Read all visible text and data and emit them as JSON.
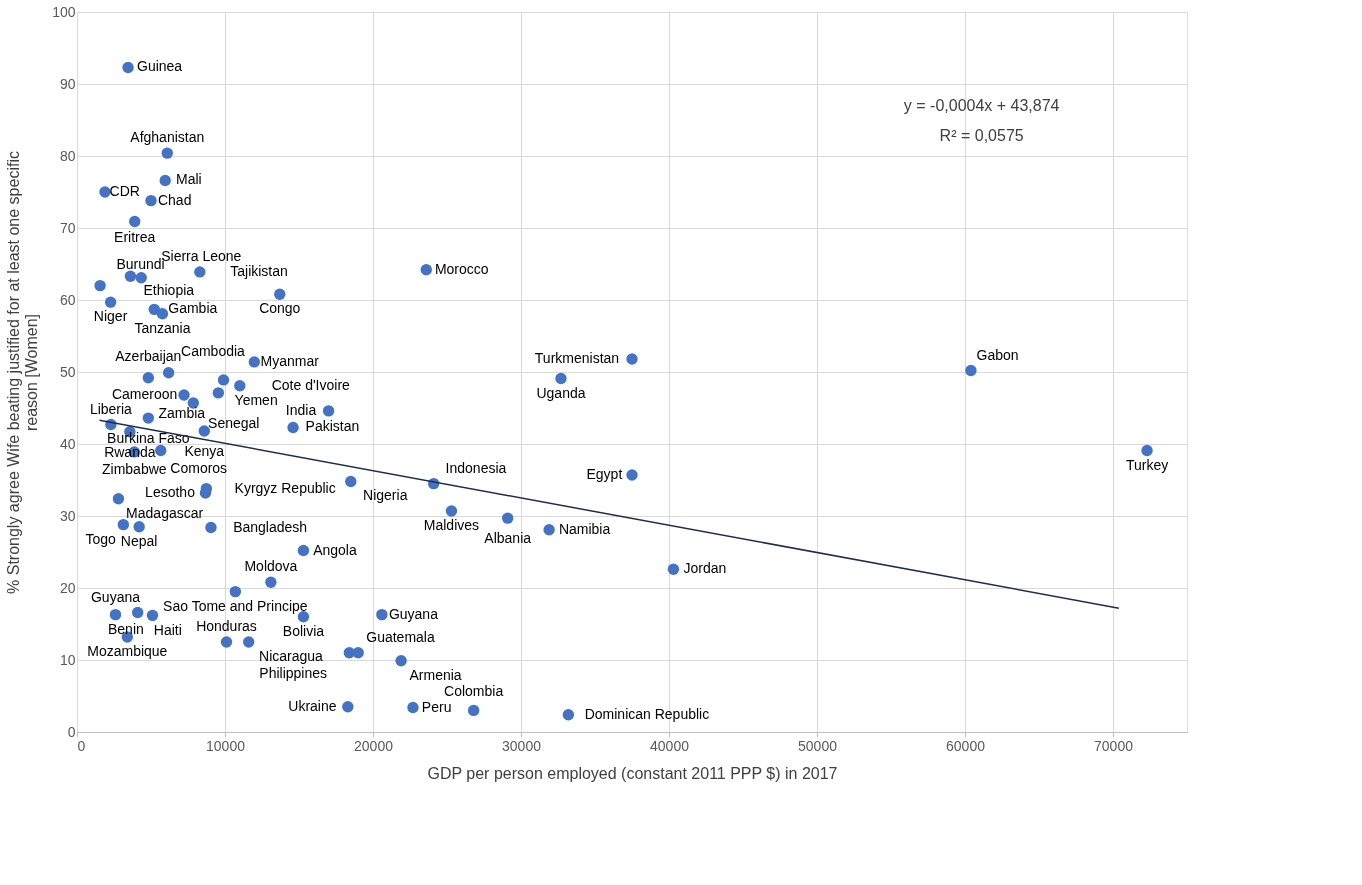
{
  "chart_data": {
    "type": "scatter",
    "xlabel": "GDP per person employed (constant 2011 PPP $) in 2017",
    "ylabel": "% Strongly agree Wife beating justified for at least one specific reason [Women]",
    "xlim": [
      0,
      75000
    ],
    "xticks": [
      0,
      10000,
      20000,
      30000,
      40000,
      50000,
      60000,
      70000
    ],
    "ylim": [
      0,
      100
    ],
    "yticks": [
      0,
      10,
      20,
      30,
      40,
      50,
      60,
      70,
      80,
      90,
      100
    ],
    "grid": true,
    "annotations": [
      "y = -0,0004x + 43,874",
      "R² = 0,0575"
    ],
    "series": [
      {
        "color": "#4472c4",
        "marker": "circle",
        "x": [
          3450,
          6100,
          5960,
          1890,
          5000,
          3900,
          1560,
          3610,
          4340,
          8300,
          13700,
          2270,
          5220,
          5770,
          23600,
          11980,
          9900,
          11000,
          7230,
          4820,
          6190,
          9550,
          7860,
          4820,
          8600,
          14600,
          17000,
          2290,
          3570,
          3870,
          5660,
          37500,
          32700,
          60400,
          72300,
          37500,
          8740,
          8680,
          18500,
          24100,
          2800,
          25300,
          29100,
          31900,
          3130,
          4200,
          9050,
          15300,
          40300,
          13100,
          10700,
          2600,
          4100,
          5100,
          15300,
          20600,
          3400,
          10100,
          11600,
          18400,
          19000,
          21900,
          18300,
          22700,
          26800,
          33200
        ],
        "values": [
          92.3,
          80.4,
          76.6,
          75.0,
          73.8,
          70.9,
          62.0,
          63.3,
          63.1,
          63.9,
          60.8,
          59.7,
          58.7,
          58.1,
          64.2,
          51.4,
          48.9,
          48.1,
          46.8,
          49.2,
          49.9,
          47.1,
          45.7,
          43.6,
          41.8,
          42.3,
          44.6,
          42.7,
          41.7,
          38.9,
          39.1,
          51.8,
          49.1,
          50.2,
          39.1,
          35.7,
          33.8,
          33.2,
          34.8,
          34.5,
          32.4,
          30.7,
          29.7,
          28.1,
          28.8,
          28.5,
          28.4,
          25.2,
          22.6,
          20.8,
          19.5,
          16.3,
          16.6,
          16.2,
          16.0,
          16.3,
          13.2,
          12.5,
          12.5,
          11.0,
          11.0,
          9.9,
          3.5,
          3.4,
          3.0,
          2.4
        ],
        "value_labels": [
          "Guinea",
          "Afghanistan",
          "Mali",
          "CDR",
          "Chad",
          "Eritrea",
          "Burundi",
          "Ethiopia",
          "Sierra Leone",
          "Tajikistan",
          "Congo",
          "Niger",
          "Gambia",
          "Tanzania",
          "Morocco",
          "Myanmar",
          "Yemen",
          "Cote d'Ivoire",
          "Cameroon",
          "Azerbaijan",
          "Cambodia",
          "Zambia",
          "Senegal",
          "Burkina Faso",
          "Kenya",
          "Pakistan",
          "India",
          "Liberia",
          "Rwanda",
          "Zimbabwe",
          "Comoros",
          "Turkmenistan",
          "Uganda",
          "Gabon",
          "Turkey",
          "Egypt",
          "Kyrgyz Republic",
          "Lesotho",
          "Nigeria",
          "Indonesia",
          "Madagascar",
          "Maldives",
          "Albania",
          "Namibia",
          "Togo",
          "Nepal",
          "Bangladesh",
          "Angola",
          "Jordan",
          "Moldova",
          "Sao Tome and Principe",
          "Guyana",
          "Haiti",
          "Benin",
          "Bolivia",
          "Guyana",
          "Mozambique",
          "Honduras",
          "Nicaragua",
          "Philippines",
          "Guatemala",
          "Armenia",
          "Ukraine",
          "Peru",
          "Colombia",
          "Dominican Republic"
        ]
      },
      {
        "type": "line",
        "color": "#1f2d4d",
        "line_style": "solid",
        "x": [
          1520,
          70400
        ],
        "values": [
          43.3,
          17.2
        ]
      }
    ]
  }
}
